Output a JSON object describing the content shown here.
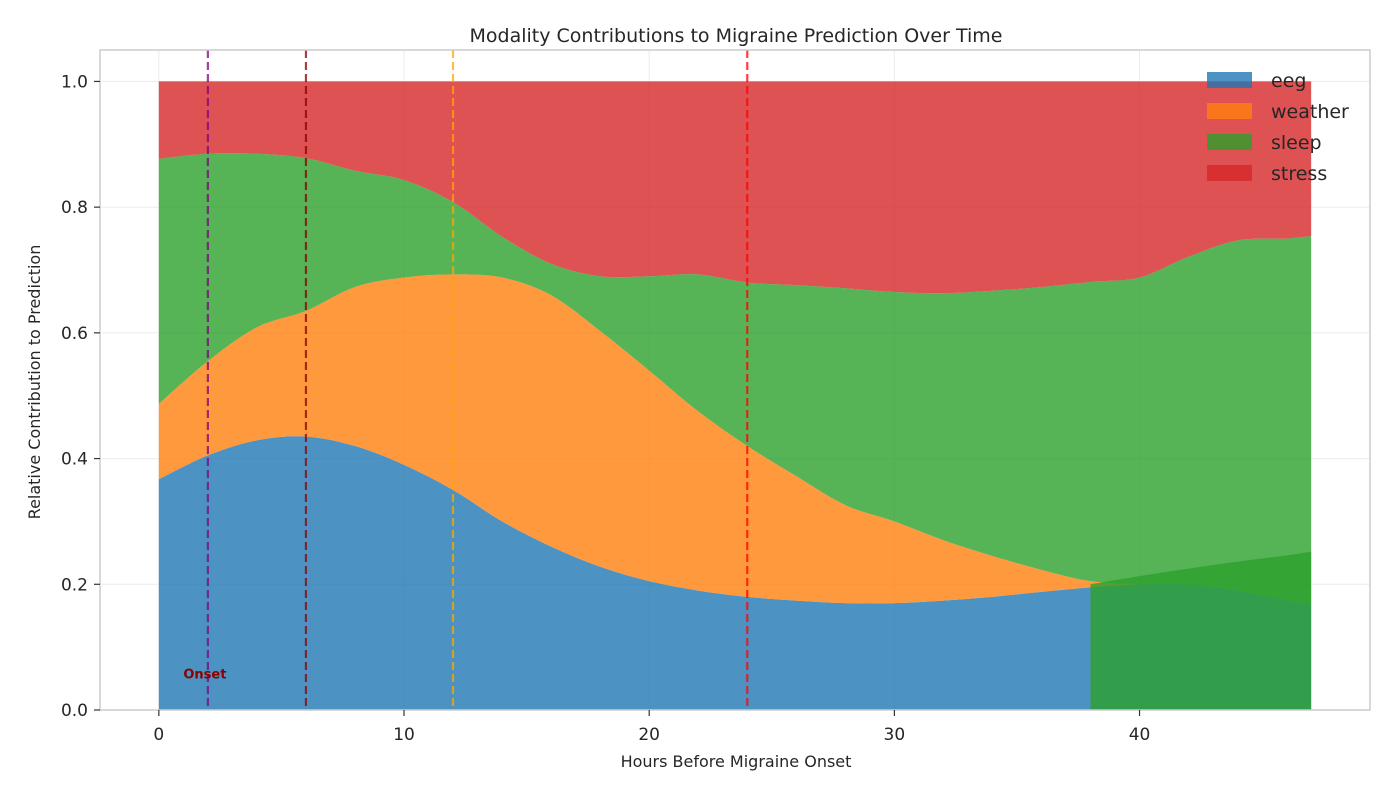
{
  "chart_data": {
    "type": "area",
    "stacked": true,
    "title": "Modality Contributions to Migraine Prediction Over Time",
    "xlabel": "Hours Before Migraine Onset",
    "ylabel": "Relative Contribution to Prediction",
    "xlim": [
      -2.4,
      49.4
    ],
    "ylim": [
      0,
      1.05
    ],
    "xticks": [
      0,
      10,
      20,
      30,
      40
    ],
    "yticks": [
      0.0,
      0.2,
      0.4,
      0.6,
      0.8,
      1.0
    ],
    "xtick_labels": [
      "0",
      "10",
      "20",
      "30",
      "40"
    ],
    "ytick_labels": [
      "0.0",
      "0.2",
      "0.4",
      "0.6",
      "0.8",
      "1.0"
    ],
    "grid": true,
    "legend_position": "top-right",
    "x": [
      0,
      2,
      4,
      6,
      8,
      10,
      12,
      14,
      16,
      18,
      20,
      22,
      24,
      26,
      28,
      30,
      32,
      34,
      36,
      38,
      40,
      42,
      44,
      46,
      47
    ],
    "series": [
      {
        "name": "eeg",
        "color": "#1f77b4",
        "values": [
          0.367,
          0.405,
          0.429,
          0.435,
          0.42,
          0.39,
          0.35,
          0.3,
          0.26,
          0.228,
          0.205,
          0.19,
          0.18,
          0.174,
          0.17,
          0.17,
          0.174,
          0.18,
          0.188,
          0.195,
          0.2,
          0.2,
          0.19,
          0.175,
          0.168
        ]
      },
      {
        "name": "weather",
        "color": "#ff7f0e",
        "values": [
          0.12,
          0.15,
          0.18,
          0.2,
          0.253,
          0.298,
          0.343,
          0.388,
          0.4,
          0.375,
          0.335,
          0.285,
          0.24,
          0.198,
          0.156,
          0.13,
          0.096,
          0.065,
          0.035,
          0.01,
          0,
          0,
          0,
          0,
          0
        ]
      },
      {
        "name": "sleep",
        "color": "#2ca02c",
        "values": [
          0.39,
          0.33,
          0.276,
          0.243,
          0.185,
          0.155,
          0.115,
          0.065,
          0.05,
          0.087,
          0.15,
          0.218,
          0.26,
          0.304,
          0.345,
          0.365,
          0.393,
          0.422,
          0.45,
          0.476,
          0.488,
          0.521,
          0.557,
          0.575,
          0.586
        ]
      },
      {
        "name": "stress",
        "color": "#d62728",
        "values": [
          0.123,
          0.115,
          0.115,
          0.122,
          0.142,
          0.157,
          0.192,
          0.247,
          0.29,
          0.31,
          0.31,
          0.307,
          0.32,
          0.324,
          0.329,
          0.335,
          0.337,
          0.333,
          0.327,
          0.319,
          0.312,
          0.279,
          0.253,
          0.25,
          0.246
        ]
      }
    ],
    "overlay": {
      "name": "eeg",
      "color": "#2ca02c",
      "x": [
        38,
        40,
        42,
        44,
        46,
        47
      ],
      "values": [
        0.2,
        0.213,
        0.225,
        0.236,
        0.246,
        0.252
      ]
    },
    "vlines": [
      {
        "x": 2,
        "color": "#800080"
      },
      {
        "x": 6,
        "color": "#8b0000"
      },
      {
        "x": 12,
        "color": "#ffa500"
      },
      {
        "x": 24,
        "color": "#ff0000"
      }
    ],
    "annotations": [
      {
        "text": "Onset",
        "x": 1,
        "y": 0.05
      }
    ]
  }
}
